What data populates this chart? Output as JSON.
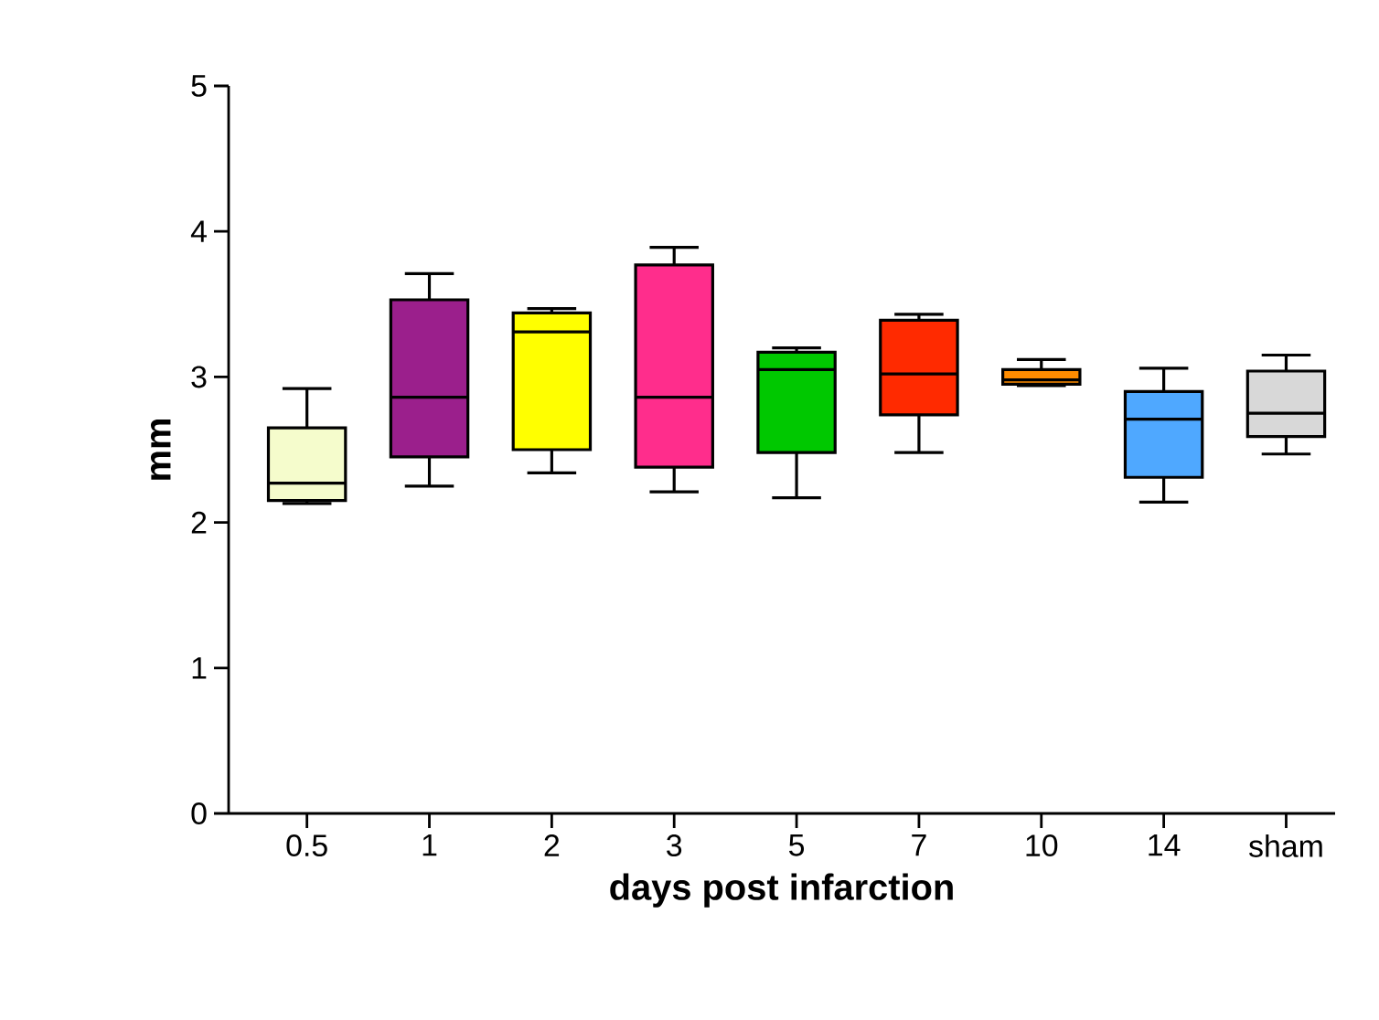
{
  "chart_data": {
    "type": "box",
    "xlabel": "days post infarction",
    "ylabel": "mm",
    "categories": [
      "0.5",
      "1",
      "2",
      "3",
      "5",
      "7",
      "10",
      "14",
      "sham"
    ],
    "boxes": [
      {
        "low": 2.13,
        "q1": 2.15,
        "median": 2.27,
        "q3": 2.65,
        "high": 2.92
      },
      {
        "low": 2.25,
        "q1": 2.45,
        "median": 2.86,
        "q3": 3.53,
        "high": 3.71
      },
      {
        "low": 2.34,
        "q1": 2.5,
        "median": 3.31,
        "q3": 3.44,
        "high": 3.47
      },
      {
        "low": 2.21,
        "q1": 2.38,
        "median": 2.86,
        "q3": 3.77,
        "high": 3.89
      },
      {
        "low": 2.17,
        "q1": 2.48,
        "median": 3.05,
        "q3": 3.17,
        "high": 3.2
      },
      {
        "low": 2.48,
        "q1": 2.74,
        "median": 3.02,
        "q3": 3.39,
        "high": 3.43
      },
      {
        "low": 2.94,
        "q1": 2.95,
        "median": 2.98,
        "q3": 3.05,
        "high": 3.12
      },
      {
        "low": 2.14,
        "q1": 2.31,
        "median": 2.71,
        "q3": 2.9,
        "high": 3.06
      },
      {
        "low": 2.47,
        "q1": 2.59,
        "median": 2.75,
        "q3": 3.04,
        "high": 3.15
      }
    ],
    "colors": [
      "#f5fccc",
      "#9b1f8c",
      "#ffff00",
      "#ff2d8c",
      "#00c800",
      "#ff2a00",
      "#ff8c00",
      "#4fa8ff",
      "#d8d8d8"
    ],
    "ylim": [
      0,
      5
    ],
    "yticks": [
      0,
      1,
      2,
      3,
      4,
      5
    ],
    "grid": false
  }
}
